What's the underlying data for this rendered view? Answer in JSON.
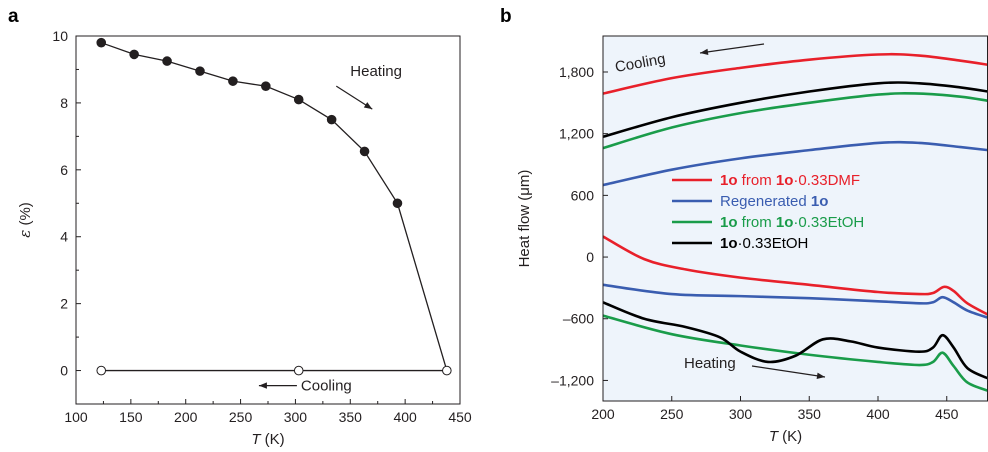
{
  "chart_data": [
    {
      "type": "scatter",
      "panel": "a",
      "xlabel_italic": "T",
      "xlabel_unit": " (K)",
      "ylabel_symbol": "ε",
      "ylabel_unit": " (%)",
      "xlim": [
        100,
        450
      ],
      "ylim": [
        -1,
        10
      ],
      "xticks": [
        100,
        150,
        200,
        250,
        300,
        350,
        400,
        450
      ],
      "yticks": [
        0,
        2,
        4,
        6,
        8,
        10
      ],
      "series": [
        {
          "name": "Heating",
          "marker": "filled",
          "x": [
            123,
            153,
            183,
            213,
            243,
            273,
            303,
            333,
            363,
            393,
            438
          ],
          "y": [
            9.8,
            9.45,
            9.25,
            8.95,
            8.65,
            8.5,
            8.1,
            7.5,
            6.55,
            5.0,
            0.0
          ],
          "marker_count": 10
        },
        {
          "name": "Cooling",
          "marker": "open",
          "x": [
            123,
            303,
            438
          ],
          "y": [
            0.0,
            0.0,
            0.0
          ]
        }
      ],
      "annotations": [
        {
          "text": "Heating",
          "arrow": "down-right",
          "x": 350,
          "y": 8.8
        },
        {
          "text": "Cooling",
          "arrow": "left",
          "x": 305,
          "y": -0.45
        }
      ]
    },
    {
      "type": "line",
      "panel": "b",
      "xlabel_italic": "T",
      "xlabel_unit": " (K)",
      "ylabel": "Heat flow (μm)",
      "xlim": [
        200,
        480
      ],
      "ylim": [
        -1400,
        2150
      ],
      "xticks": [
        200,
        250,
        300,
        350,
        400,
        450
      ],
      "yticks": [
        -1200,
        -600,
        0,
        600,
        1200,
        1800
      ],
      "ytick_labels": [
        "–1,200",
        "–600",
        "0",
        "600",
        "1,200",
        "1,800"
      ],
      "series": [
        {
          "name": "1o from 1o·0.33DMF",
          "color": "#e8202a",
          "cooling": {
            "x": [
              200,
              250,
              300,
              350,
              400,
              430,
              460,
              480
            ],
            "y": [
              1590,
              1740,
              1840,
              1920,
              1970,
              1960,
              1910,
              1870
            ]
          },
          "heating": {
            "x": [
              200,
              230,
              260,
              300,
              350,
              400,
              430,
              440,
              448,
              455,
              465,
              480
            ],
            "y": [
              200,
              -20,
              -120,
              -200,
              -270,
              -340,
              -360,
              -350,
              -290,
              -330,
              -450,
              -560
            ]
          }
        },
        {
          "name": "Regenerated 1o",
          "color": "#3a5db0",
          "cooling": {
            "x": [
              200,
              250,
              300,
              350,
              400,
              430,
              460,
              480
            ],
            "y": [
              700,
              850,
              960,
              1040,
              1110,
              1110,
              1070,
              1040
            ]
          },
          "heating": {
            "x": [
              200,
              250,
              300,
              350,
              400,
              430,
              440,
              447,
              455,
              465,
              480
            ],
            "y": [
              -270,
              -360,
              -380,
              -400,
              -430,
              -450,
              -440,
              -390,
              -440,
              -520,
              -590
            ]
          }
        },
        {
          "name": "1o from 1o·0.33EtOH",
          "color": "#1a9c4a",
          "cooling": {
            "x": [
              200,
              250,
              300,
              350,
              400,
              430,
              460,
              480
            ],
            "y": [
              1060,
              1260,
              1400,
              1500,
              1580,
              1590,
              1560,
              1520
            ]
          },
          "heating": {
            "x": [
              200,
              250,
              300,
              350,
              400,
              430,
              440,
              447,
              455,
              465,
              480
            ],
            "y": [
              -570,
              -750,
              -860,
              -950,
              -1020,
              -1050,
              -1020,
              -930,
              -1060,
              -1220,
              -1300
            ]
          }
        },
        {
          "name": "1o·0.33EtOH",
          "color": "#000000",
          "cooling": {
            "x": [
              200,
              250,
              300,
              350,
              400,
              430,
              460,
              480
            ],
            "y": [
              1170,
              1360,
              1500,
              1610,
              1690,
              1690,
              1650,
              1610
            ]
          },
          "heating": {
            "x": [
              200,
              230,
              260,
              285,
              300,
              320,
              340,
              360,
              380,
              400,
              430,
              440,
              447,
              455,
              465,
              480
            ],
            "y": [
              -440,
              -600,
              -680,
              -780,
              -920,
              -1020,
              -960,
              -800,
              -820,
              -880,
              -920,
              -880,
              -760,
              -880,
              -1080,
              -1180
            ]
          }
        }
      ],
      "legend": [
        {
          "bold": "1o",
          "mid": " from ",
          "bold2": "1o",
          "rest": "·0.33DMF",
          "color": "#e8202a"
        },
        {
          "bold": "",
          "mid": "Regenerated ",
          "bold2": "1o",
          "rest": "",
          "color": "#3a5db0"
        },
        {
          "bold": "1o",
          "mid": " from ",
          "bold2": "1o",
          "rest": "·0.33EtOH",
          "color": "#1a9c4a"
        },
        {
          "bold": "1o",
          "mid": "",
          "bold2": "",
          "rest": "·0.33EtOH",
          "color": "#000000"
        }
      ],
      "legend_placement": "center",
      "background": "#eef4fb",
      "annotations": [
        {
          "text": "Cooling",
          "arrow": "left"
        },
        {
          "text": "Heating",
          "arrow": "right"
        }
      ]
    }
  ]
}
